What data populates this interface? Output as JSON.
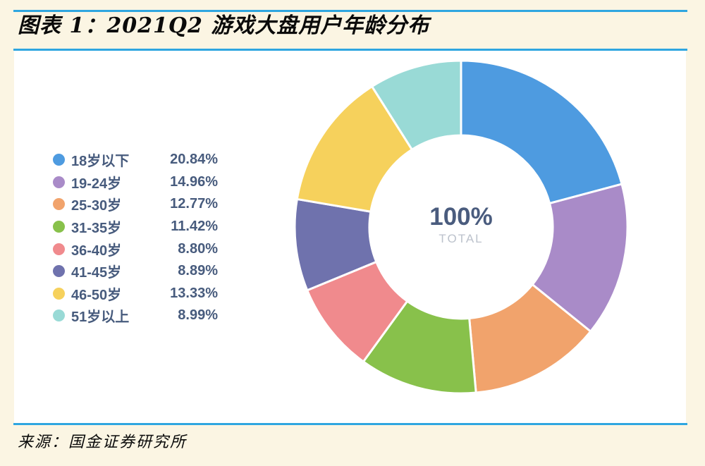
{
  "header": {
    "title": "图表 1：2021Q2 游戏大盘用户年龄分布"
  },
  "footer": {
    "source": "来源：国金证券研究所"
  },
  "theme": {
    "background": "#FBF5E3",
    "panel": "#FFFFFF",
    "divider_color": "#2FA6E0",
    "title_color": "#0A0A0A",
    "legend_text": "#475B7D",
    "center_value_color": "#4A5C7E",
    "center_label_color": "#BCC2CC",
    "source_color": "#0A0A0A"
  },
  "chart_data": {
    "type": "pie",
    "subtype": "donut",
    "title": "图表 1：2021Q2 游戏大盘用户年龄分布",
    "center_value": "100%",
    "center_label": "TOTAL",
    "legend_position": "left",
    "start_angle_deg": 0,
    "direction": "clockwise",
    "units": "percent",
    "segments": [
      {
        "label": "18岁以下",
        "value": 20.84,
        "value_label": "20.84%",
        "color": "#4E9BE0"
      },
      {
        "label": "19-24岁",
        "value": 14.96,
        "value_label": "14.96%",
        "color": "#A98BC8"
      },
      {
        "label": "25-30岁",
        "value": 12.77,
        "value_label": "12.77%",
        "color": "#F1A36C"
      },
      {
        "label": "31-35岁",
        "value": 11.42,
        "value_label": "11.42%",
        "color": "#88C14B"
      },
      {
        "label": "36-40岁",
        "value": 8.8,
        "value_label": "8.80%",
        "color": "#F08A8D"
      },
      {
        "label": "41-45岁",
        "value": 8.89,
        "value_label": "8.89%",
        "color": "#6F72AD"
      },
      {
        "label": "46-50岁",
        "value": 13.33,
        "value_label": "13.33%",
        "color": "#F6D15C"
      },
      {
        "label": "51岁以上",
        "value": 8.99,
        "value_label": "8.99%",
        "color": "#99DAD6"
      }
    ]
  }
}
